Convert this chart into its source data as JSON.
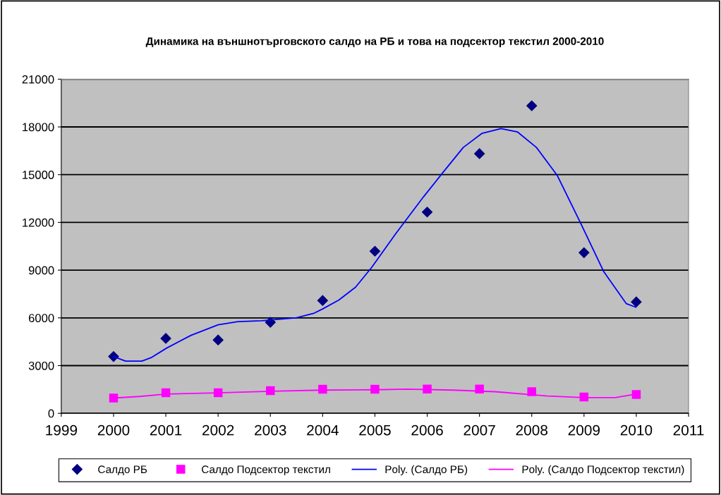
{
  "chart_data": {
    "type": "scatter",
    "title": "Динамика на външнотърговското салдо на РБ и това на подсектор текстил 2000-2010",
    "x": [
      2000,
      2001,
      2002,
      2003,
      2004,
      2005,
      2006,
      2007,
      2008,
      2009,
      2010
    ],
    "series": [
      {
        "name": "Салдо РБ",
        "color": "#000080",
        "marker": "diamond",
        "values": [
          3570,
          4710,
          4610,
          5720,
          7090,
          10190,
          12650,
          16320,
          19330,
          10100,
          7000
        ]
      },
      {
        "name": "Салдо Подсектор текстил",
        "color": "#ff00ff",
        "marker": "square",
        "values": [
          960,
          1290,
          1290,
          1430,
          1510,
          1510,
          1520,
          1520,
          1360,
          1030,
          1180
        ]
      },
      {
        "name": "Poly. (Салдо РБ)",
        "type": "line",
        "color": "#0000ff",
        "marker": "none",
        "x": [
          2000.0,
          2000.23,
          2000.54,
          2000.72,
          2001.01,
          2001.48,
          2002.0,
          2002.38,
          2002.83,
          2003.5,
          2003.84,
          2004.0,
          2004.31,
          2004.63,
          2004.94,
          2005.39,
          2005.93,
          2006.29,
          2006.69,
          2007.05,
          2007.41,
          2007.73,
          2008.09,
          2008.49,
          2008.93,
          2009.38,
          2009.81,
          2009.99
        ],
        "values": [
          3570,
          3280,
          3280,
          3500,
          4090,
          4900,
          5560,
          5760,
          5820,
          6010,
          6300,
          6560,
          7120,
          7930,
          9180,
          11250,
          13610,
          15090,
          16710,
          17600,
          17900,
          17680,
          16710,
          14940,
          11990,
          8890,
          6890,
          6670
        ]
      },
      {
        "name": "Poly. (Салдо Подсектор текстил)",
        "type": "line",
        "color": "#ff00ff",
        "marker": "none",
        "x": [
          2000.0,
          2000.5,
          2001.0,
          2002.0,
          2003.0,
          2004.0,
          2005.0,
          2005.6,
          2006.5,
          2007.3,
          2008.3,
          2009.0,
          2009.6,
          2010.0
        ],
        "values": [
          960,
          1060,
          1210,
          1290,
          1390,
          1460,
          1480,
          1520,
          1460,
          1360,
          1090,
          990,
          990,
          1210
        ]
      }
    ],
    "xlim": [
      1999,
      2011
    ],
    "xticks": [
      1999,
      2000,
      2001,
      2002,
      2003,
      2004,
      2005,
      2006,
      2007,
      2008,
      2009,
      2010,
      2011
    ],
    "ylim": [
      0,
      21000
    ],
    "yticks": [
      0,
      3000,
      6000,
      9000,
      12000,
      15000,
      18000,
      21000
    ],
    "grid": "y",
    "legend": "bottom"
  }
}
